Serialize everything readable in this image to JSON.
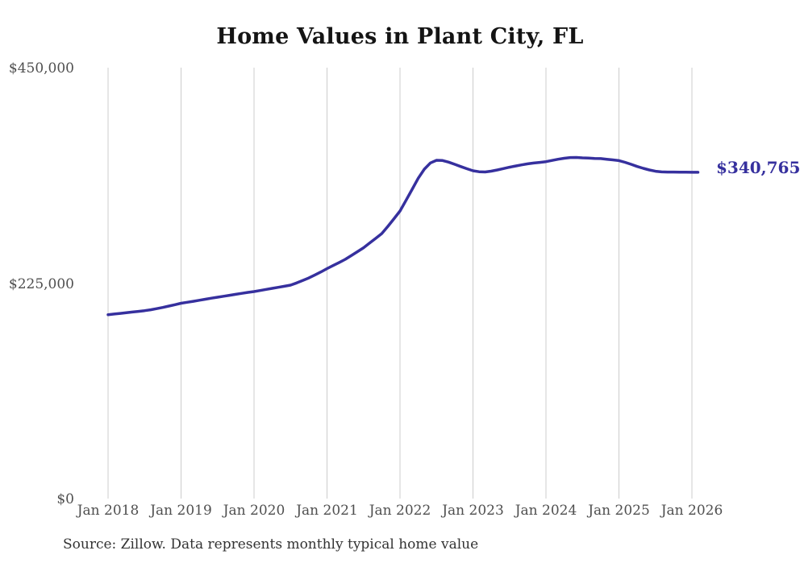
{
  "title": "Home Values in Plant City, FL",
  "source_note": "Source: Zillow. Data represents monthly typical home value",
  "end_label": "$340,765",
  "colors": {
    "line": "#36309E",
    "gridline": "#cccccc",
    "tick_label": "#4f4f4f",
    "title": "#141414",
    "source": "#333333",
    "background": "#ffffff"
  },
  "chart_data": {
    "type": "line",
    "title": "Home Values in Plant City, FL",
    "series_name": "Monthly typical home value",
    "start_month": "2018-01",
    "end_month": "2026-02",
    "ylim": [
      0,
      450000
    ],
    "grid": "vertical-only",
    "legend": "none",
    "last_value_label": "$340,765",
    "y_ticks": [
      {
        "label": "$450,000",
        "value": 450000
      },
      {
        "label": "$225,000",
        "value": 225000
      },
      {
        "label": "$0",
        "value": 0
      }
    ],
    "x_ticks": [
      {
        "label": "Jan 2018",
        "month_index": 0
      },
      {
        "label": "Jan 2019",
        "month_index": 12
      },
      {
        "label": "Jan 2020",
        "month_index": 24
      },
      {
        "label": "Jan 2021",
        "month_index": 36
      },
      {
        "label": "Jan 2022",
        "month_index": 48
      },
      {
        "label": "Jan 2023",
        "month_index": 60
      },
      {
        "label": "Jan 2024",
        "month_index": 72
      },
      {
        "label": "Jan 2025",
        "month_index": 84
      },
      {
        "label": "Jan 2026",
        "month_index": 96
      }
    ],
    "values": [
      192000,
      192700,
      193400,
      194100,
      194800,
      195500,
      196200,
      197200,
      198300,
      199600,
      201000,
      202500,
      204000,
      205000,
      206000,
      207100,
      208200,
      209300,
      210300,
      211300,
      212300,
      213300,
      214300,
      215300,
      216200,
      217300,
      218400,
      219500,
      220600,
      221700,
      222900,
      225200,
      227700,
      230400,
      233500,
      236700,
      240100,
      243300,
      246500,
      249800,
      253800,
      257800,
      261900,
      266800,
      271700,
      276700,
      284200,
      292200,
      300300,
      311500,
      323000,
      334500,
      344000,
      350500,
      353300,
      353000,
      351300,
      349100,
      346700,
      344400,
      342300,
      341300,
      341100,
      341900,
      343200,
      344600,
      346000,
      347300,
      348500,
      349600,
      350400,
      351100,
      351800,
      353100,
      354400,
      355400,
      356100,
      356200,
      355800,
      355500,
      355200,
      355000,
      354400,
      353700,
      352900,
      351200,
      349100,
      346800,
      344900,
      343200,
      341800,
      341200,
      341000,
      341000,
      340900,
      340800,
      340700,
      340765
    ]
  }
}
